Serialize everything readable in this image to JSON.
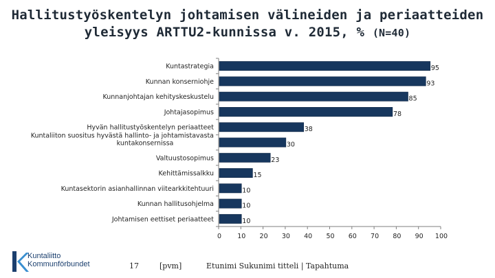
{
  "title_line1": "Hallitustyöskentelyn johtamisen välineiden ja periaatteiden",
  "title_line2": "yleisyys ARTTU2-kunnissa v. 2015, %",
  "title_n": "(N=40)",
  "chart_data": {
    "type": "bar",
    "orientation": "horizontal",
    "categories": [
      "Kuntastrategia",
      "Kunnan konserniohje",
      "Kunnanjohtajan kehityskeskustelu",
      "Johtajasopimus",
      "Hyvän hallitustyöskentelyn periaatteet",
      "Kuntaliiton suositus hyvästä hallinto- ja johtamistavasta kuntakonsernissa",
      "Valtuustosopimus",
      "Kehittämissalkku",
      "Kuntasektorin asianhallinnan viitearkkitehtuuri",
      "Kunnan hallitusohjelma",
      "Johtamisen eettiset periaatteet"
    ],
    "category_lines": [
      [
        "Kuntastrategia"
      ],
      [
        "Kunnan konserniohje"
      ],
      [
        "Kunnanjohtajan kehityskeskustelu"
      ],
      [
        "Johtajasopimus"
      ],
      [
        "Hyvän hallitustyöskentelyn periaatteet"
      ],
      [
        "Kuntaliiton suositus hyvästä hallinto- ja johtamistavasta",
        "kuntakonsernissa"
      ],
      [
        "Valtuustosopimus"
      ],
      [
        "Kehittämissalkku"
      ],
      [
        "Kuntasektorin asianhallinnan viitearkkitehtuuri"
      ],
      [
        "Kunnan hallitusohjelma"
      ],
      [
        "Johtamisen eettiset periaatteet"
      ]
    ],
    "values": [
      95,
      93,
      85,
      78,
      38,
      30,
      23,
      15,
      10,
      10,
      10
    ],
    "xlim": [
      0,
      100
    ],
    "xticks": [
      0,
      10,
      20,
      30,
      40,
      50,
      60,
      70,
      80,
      90,
      100
    ],
    "bar_color": "#17375e",
    "xlabel": "",
    "ylabel": ""
  },
  "footer": {
    "page_number": "17",
    "date": "[pvm]",
    "author_event": "Etunimi Sukunimi titteli | Tapahtuma",
    "logo_line1": "Kuntaliitto",
    "logo_line2": "Kommunförbundet"
  }
}
